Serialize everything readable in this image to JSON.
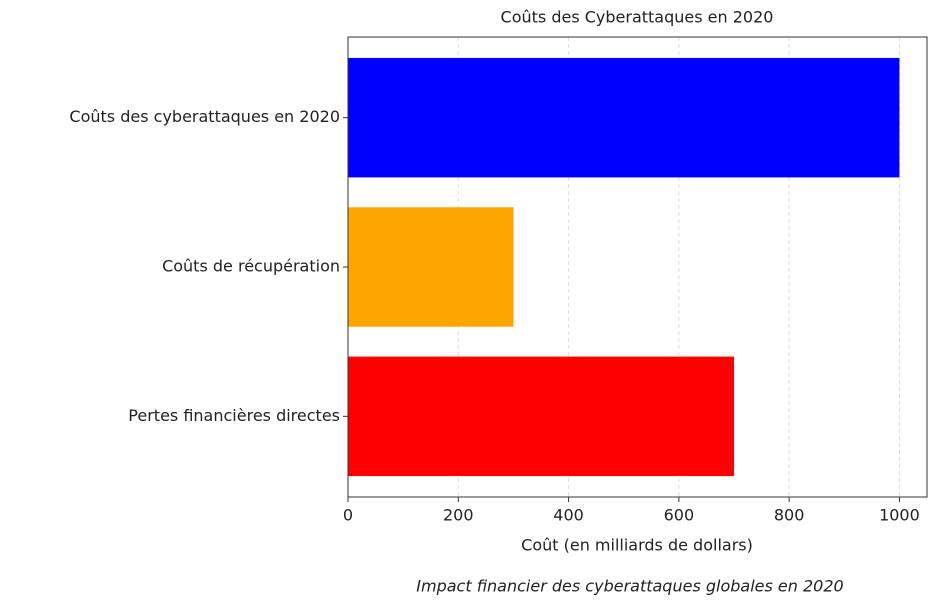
{
  "chart_data": {
    "type": "barh",
    "title": "Coûts des Cyberattaques en 2020",
    "categories": [
      "Coûts des cyberattaques en 2020",
      "Coûts de récupération",
      "Pertes financières directes"
    ],
    "values": [
      1000,
      300,
      700
    ],
    "colors": [
      "#0000ff",
      "#ffa500",
      "#ff0000"
    ],
    "xlabel": "Coût (en milliards de dollars)",
    "caption": "Impact financier des cyberattaques globales en 2020",
    "xlim": [
      0,
      1050
    ],
    "xticks": [
      0,
      200,
      400,
      600,
      800,
      1000
    ],
    "grid": true
  }
}
